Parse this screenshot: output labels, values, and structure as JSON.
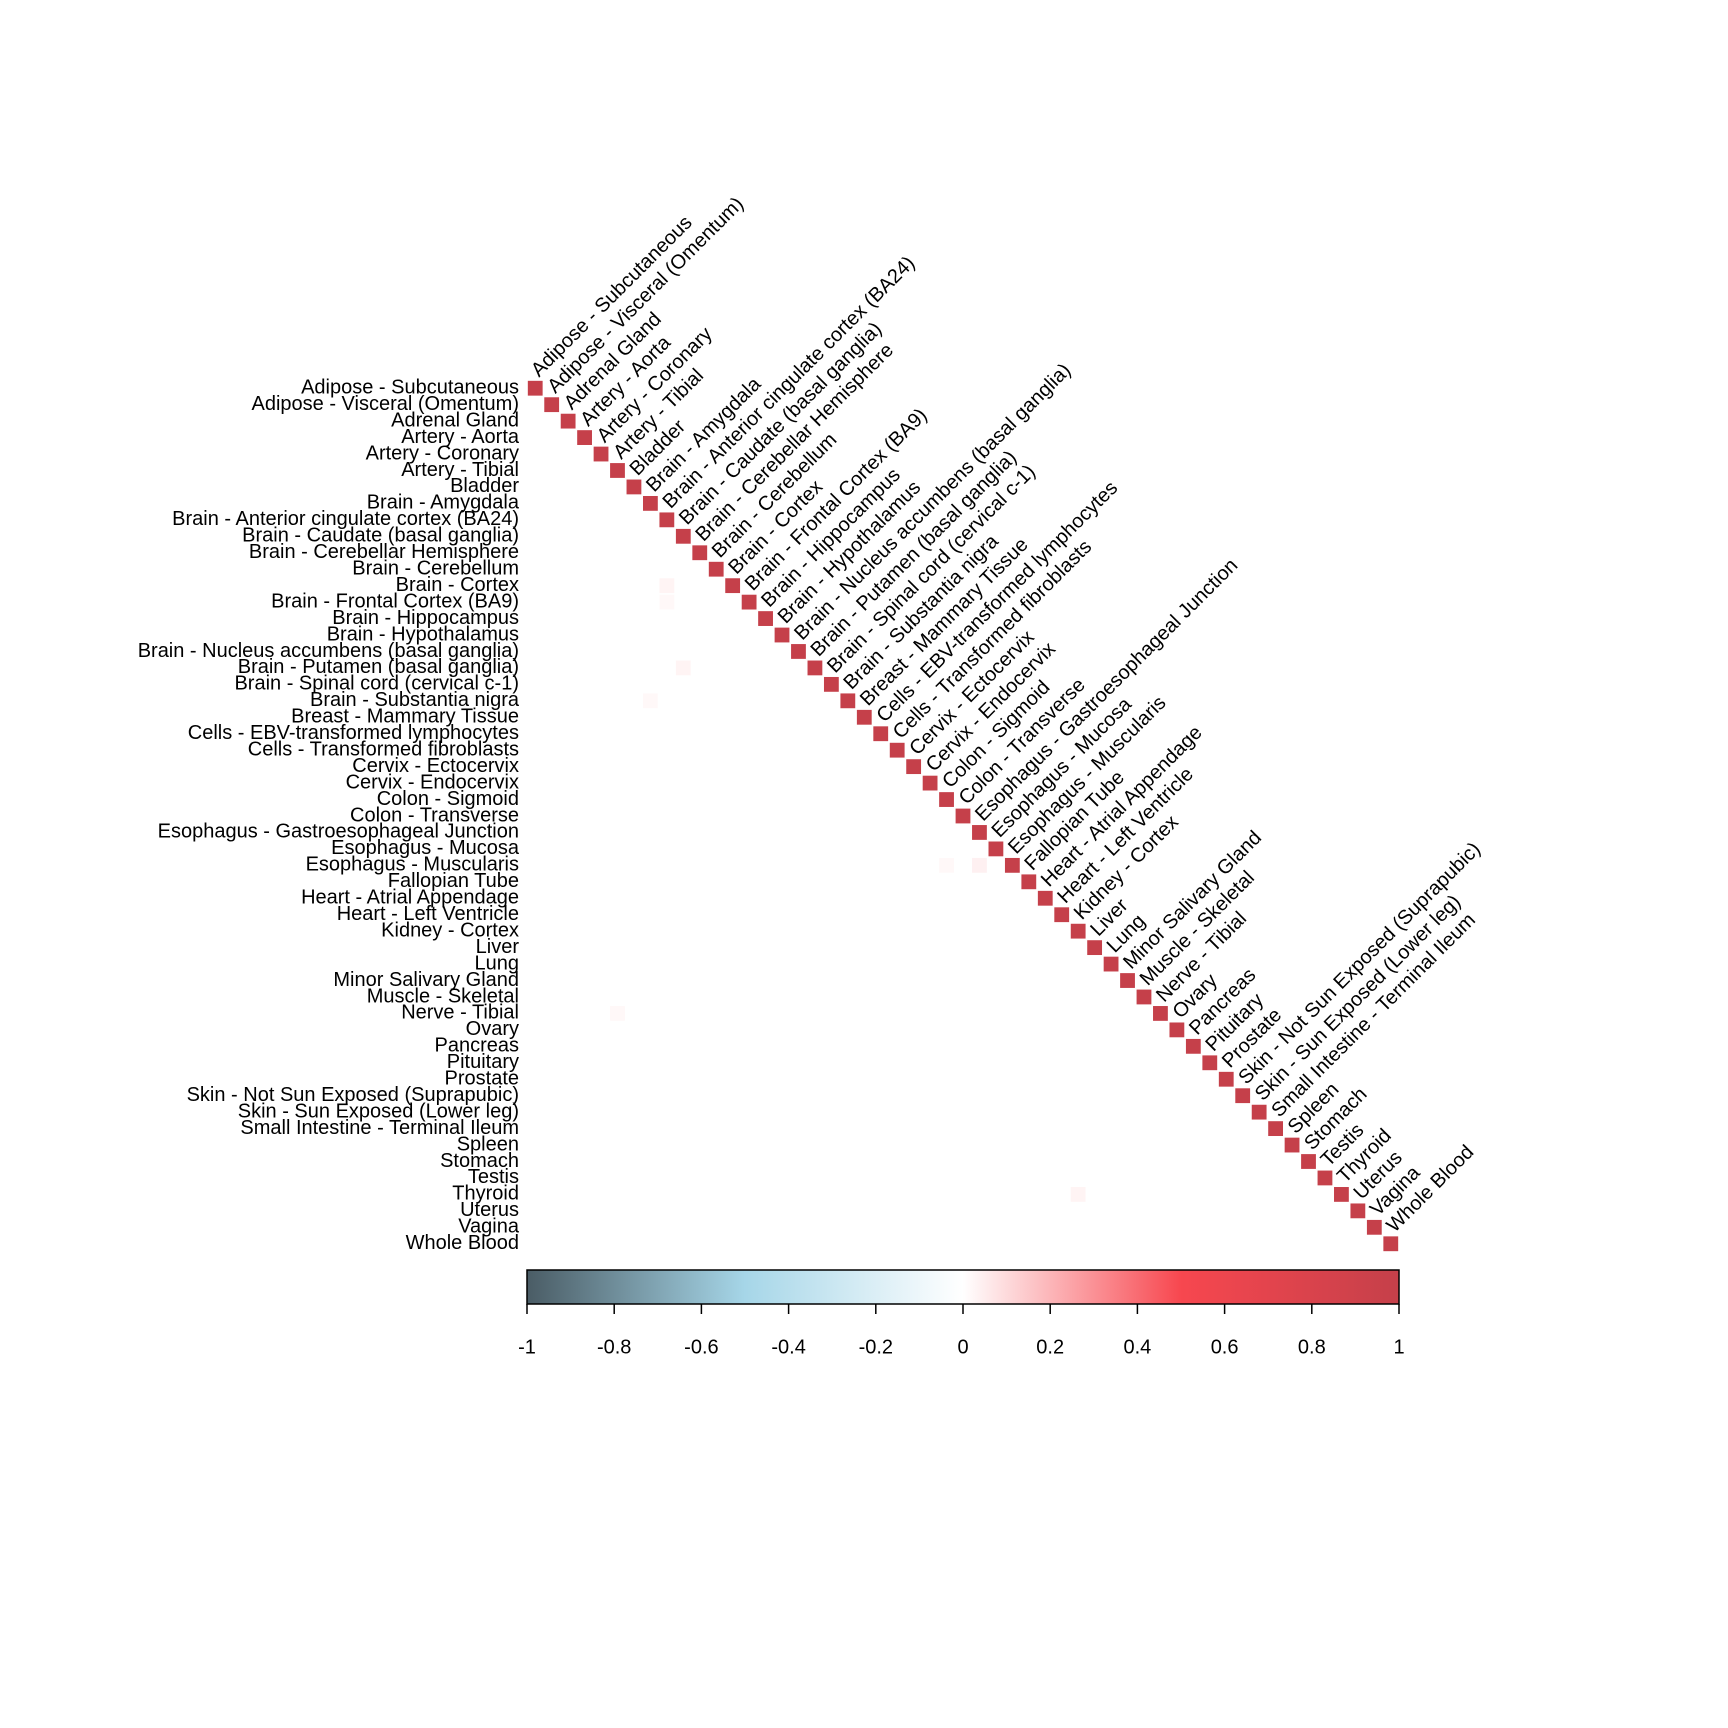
{
  "chart_data": {
    "type": "heatmap",
    "labels": [
      "Adipose - Subcutaneous",
      "Adipose - Visceral (Omentum)",
      "Adrenal Gland",
      "Artery - Aorta",
      "Artery - Coronary",
      "Artery - Tibial",
      "Bladder",
      "Brain - Amygdala",
      "Brain - Anterior cingulate cortex (BA24)",
      "Brain - Caudate (basal ganglia)",
      "Brain - Cerebellar Hemisphere",
      "Brain - Cerebellum",
      "Brain - Cortex",
      "Brain - Frontal Cortex (BA9)",
      "Brain - Hippocampus",
      "Brain - Hypothalamus",
      "Brain - Nucleus accumbens (basal ganglia)",
      "Brain - Putamen (basal ganglia)",
      "Brain - Spinal cord (cervical c-1)",
      "Brain - Substantia nigra",
      "Breast - Mammary Tissue",
      "Cells - EBV-transformed lymphocytes",
      "Cells - Transformed fibroblasts",
      "Cervix - Ectocervix",
      "Cervix - Endocervix",
      "Colon - Sigmoid",
      "Colon - Transverse",
      "Esophagus - Gastroesophageal Junction",
      "Esophagus - Mucosa",
      "Esophagus - Muscularis",
      "Fallopian Tube",
      "Heart - Atrial Appendage",
      "Heart - Left Ventricle",
      "Kidney - Cortex",
      "Liver",
      "Lung",
      "Minor Salivary Gland",
      "Muscle - Skeletal",
      "Nerve - Tibial",
      "Ovary",
      "Pancreas",
      "Pituitary",
      "Prostate",
      "Skin - Not Sun Exposed (Suprapubic)",
      "Skin - Sun Exposed (Lower leg)",
      "Small Intestine - Terminal Ileum",
      "Spleen",
      "Stomach",
      "Testis",
      "Thyroid",
      "Uterus",
      "Vagina",
      "Whole Blood"
    ],
    "matrix": [
      [
        1
      ],
      [
        0,
        1
      ],
      [
        0,
        0,
        1
      ],
      [
        0,
        0,
        0,
        1
      ],
      [
        0,
        0,
        0,
        0,
        1
      ],
      [
        0,
        0,
        0,
        0,
        0,
        1
      ],
      [
        0,
        0,
        0,
        0,
        0,
        0,
        1
      ],
      [
        0,
        0,
        0,
        0,
        0,
        0,
        0,
        1
      ],
      [
        0,
        0,
        0,
        0,
        0,
        0,
        0,
        0,
        1
      ],
      [
        0,
        0,
        0,
        0,
        0,
        0,
        0,
        0,
        0,
        1
      ],
      [
        0,
        0,
        0,
        0,
        0,
        0,
        0,
        0,
        0,
        0,
        1
      ],
      [
        0,
        0,
        0,
        0,
        0,
        0,
        0,
        0,
        0,
        0,
        0,
        1
      ],
      [
        0,
        0,
        0,
        0,
        0,
        0,
        0,
        0,
        0.03,
        0,
        0,
        0,
        1
      ],
      [
        0,
        0,
        0,
        0,
        0,
        0,
        0,
        0,
        0.02,
        0,
        0,
        0,
        0,
        1
      ],
      [
        0,
        0,
        0,
        0,
        0,
        0,
        0,
        0,
        0,
        0,
        0,
        0,
        0,
        0,
        1
      ],
      [
        0,
        0,
        0,
        0,
        0,
        0,
        0,
        0,
        0,
        0,
        0,
        0,
        0,
        0,
        0,
        1
      ],
      [
        0,
        0,
        0,
        0,
        0,
        0,
        0,
        0,
        0,
        0,
        0,
        0,
        0,
        0,
        0,
        0,
        1
      ],
      [
        0,
        0,
        0,
        0,
        0,
        0,
        0,
        0,
        0,
        0.03,
        0,
        0,
        0,
        0,
        0,
        0,
        0,
        1
      ],
      [
        0,
        0,
        0,
        0,
        0,
        0,
        0,
        0,
        0,
        0,
        0,
        0,
        0,
        0,
        0,
        0,
        0,
        0,
        1
      ],
      [
        0,
        0,
        0,
        0,
        0,
        0,
        0,
        0.02,
        0,
        0,
        0,
        0,
        0,
        0,
        0,
        0,
        0,
        0,
        0,
        1
      ],
      [
        0,
        0,
        0,
        0,
        0,
        0,
        0,
        0,
        0,
        0,
        0,
        0,
        0,
        0,
        0,
        0,
        0,
        0,
        0,
        0,
        1
      ],
      [
        0,
        0,
        0,
        0,
        0,
        0,
        0,
        0,
        0,
        0,
        0,
        0,
        0,
        0,
        0,
        0,
        0,
        0,
        0,
        0,
        0,
        1
      ],
      [
        0,
        0,
        0,
        0,
        0,
        0,
        0,
        0,
        0,
        0,
        0,
        0,
        0,
        0,
        0,
        0,
        0,
        0,
        0,
        0,
        0,
        0,
        1
      ],
      [
        0,
        0,
        0,
        0,
        0,
        0,
        0,
        0,
        0,
        0,
        0,
        0,
        0,
        0,
        0,
        0,
        0,
        0,
        0,
        0,
        0,
        0,
        0,
        1
      ],
      [
        0,
        0,
        0,
        0,
        0,
        0,
        0,
        0,
        0,
        0,
        0,
        0,
        0,
        0,
        0,
        0,
        0,
        0,
        0,
        0,
        0,
        0,
        0,
        0,
        1
      ],
      [
        0,
        0,
        0,
        0,
        0,
        0,
        0,
        0,
        0,
        0,
        0,
        0,
        0,
        0,
        0,
        0,
        0,
        0,
        0,
        0,
        0,
        0,
        0,
        0,
        0,
        1
      ],
      [
        0,
        0,
        0,
        0,
        0,
        0,
        0,
        0,
        0,
        0,
        0,
        0,
        0,
        0,
        0,
        0,
        0,
        0,
        0,
        0,
        0,
        0,
        0,
        0,
        0,
        0,
        1
      ],
      [
        0,
        0,
        0,
        0,
        0,
        0,
        0,
        0,
        0,
        0,
        0,
        0,
        0,
        0,
        0,
        0,
        0,
        0,
        0,
        0,
        0,
        0,
        0,
        0,
        0,
        0,
        0,
        1
      ],
      [
        0,
        0,
        0,
        0,
        0,
        0,
        0,
        0,
        0,
        0,
        0,
        0,
        0,
        0,
        0,
        0,
        0,
        0,
        0,
        0,
        0,
        0,
        0,
        0,
        0,
        0,
        0,
        0,
        1
      ],
      [
        0,
        0,
        0,
        0,
        0,
        0,
        0,
        0,
        0,
        0,
        0,
        0,
        0,
        0,
        0,
        0,
        0,
        0,
        0,
        0,
        0,
        0,
        0,
        0,
        0,
        0.02,
        0,
        0.04,
        0,
        1
      ],
      [
        0,
        0,
        0,
        0,
        0,
        0,
        0,
        0,
        0,
        0,
        0,
        0,
        0,
        0,
        0,
        0,
        0,
        0,
        0,
        0,
        0,
        0,
        0,
        0,
        0,
        0,
        0,
        0,
        0,
        0,
        1
      ],
      [
        0,
        0,
        0,
        0,
        0,
        0,
        0,
        0,
        0,
        0,
        0,
        0,
        0,
        0,
        0,
        0,
        0,
        0,
        0,
        0,
        0,
        0,
        0,
        0,
        0,
        0,
        0,
        0,
        0,
        0,
        0,
        1
      ],
      [
        0,
        0,
        0,
        0,
        0,
        0,
        0,
        0,
        0,
        0,
        0,
        0,
        0,
        0,
        0,
        0,
        0,
        0,
        0,
        0,
        0,
        0,
        0,
        0,
        0,
        0,
        0,
        0,
        0,
        0,
        0,
        0,
        1
      ],
      [
        0,
        0,
        0,
        0,
        0,
        0,
        0,
        0,
        0,
        0,
        0,
        0,
        0,
        0,
        0,
        0,
        0,
        0,
        0,
        0,
        0,
        0,
        0,
        0,
        0,
        0,
        0,
        0,
        0,
        0,
        0,
        0,
        0,
        1
      ],
      [
        0,
        0,
        0,
        0,
        0,
        0,
        0,
        0,
        0,
        0,
        0,
        0,
        0,
        0,
        0,
        0,
        0,
        0,
        0,
        0,
        0,
        0,
        0,
        0,
        0,
        0,
        0,
        0,
        0,
        0,
        0,
        0,
        0,
        0,
        1
      ],
      [
        0,
        0,
        0,
        0,
        0,
        0,
        0,
        0,
        0,
        0,
        0,
        0,
        0,
        0,
        0,
        0,
        0,
        0,
        0,
        0,
        0,
        0,
        0,
        0,
        0,
        0,
        0,
        0,
        0,
        0,
        0,
        0,
        0,
        0,
        0,
        1
      ],
      [
        0,
        0,
        0,
        0,
        0,
        0,
        0,
        0,
        0,
        0,
        0,
        0,
        0,
        0,
        0,
        0,
        0,
        0,
        0,
        0,
        0,
        0,
        0,
        0,
        0,
        0,
        0,
        0,
        0,
        0,
        0,
        0,
        0,
        0,
        0,
        0,
        1
      ],
      [
        0,
        0,
        0,
        0,
        0,
        0,
        0,
        0,
        0,
        0,
        0,
        0,
        0,
        0,
        0,
        0,
        0,
        0,
        0,
        0,
        0,
        0,
        0,
        0,
        0,
        0,
        0,
        0,
        0,
        0,
        0,
        0,
        0,
        0,
        0,
        0,
        0,
        1
      ],
      [
        0,
        0,
        0,
        0,
        0,
        0.02,
        0,
        0,
        0,
        0,
        0,
        0,
        0,
        0,
        0,
        0,
        0,
        0,
        0,
        0,
        0,
        0,
        0,
        0,
        0,
        0,
        0,
        0,
        0,
        0,
        0,
        0,
        0,
        0,
        0,
        0,
        0,
        0,
        1
      ],
      [
        0,
        0,
        0,
        0,
        0,
        0,
        0,
        0,
        0,
        0,
        0,
        0,
        0,
        0,
        0,
        0,
        0,
        0,
        0,
        0,
        0,
        0,
        0,
        0,
        0,
        0,
        0,
        0,
        0,
        0,
        0,
        0,
        0,
        0,
        0,
        0,
        0,
        0,
        0,
        1
      ],
      [
        0,
        0,
        0,
        0,
        0,
        0,
        0,
        0,
        0,
        0,
        0,
        0,
        0,
        0,
        0,
        0,
        0,
        0,
        0,
        0,
        0,
        0,
        0,
        0,
        0,
        0,
        0,
        0,
        0,
        0,
        0,
        0,
        0,
        0,
        0,
        0,
        0,
        0,
        0,
        0,
        1
      ],
      [
        0,
        0,
        0,
        0,
        0,
        0,
        0,
        0,
        0,
        0,
        0,
        0,
        0,
        0,
        0,
        0,
        0,
        0,
        0,
        0,
        0,
        0,
        0,
        0,
        0,
        0,
        0,
        0,
        0,
        0,
        0,
        0,
        0,
        0,
        0,
        0,
        0,
        0,
        0,
        0,
        0,
        1
      ],
      [
        0,
        0,
        0,
        0,
        0,
        0,
        0,
        0,
        0,
        0,
        0,
        0,
        0,
        0,
        0,
        0,
        0,
        0,
        0,
        0,
        0,
        0,
        0,
        0,
        0,
        0,
        0,
        0,
        0,
        0,
        0,
        0,
        0,
        0,
        0,
        0,
        0,
        0,
        0,
        0,
        0,
        0,
        1
      ],
      [
        0,
        0,
        0,
        0,
        0,
        0,
        0,
        0,
        0,
        0,
        0,
        0,
        0,
        0,
        0,
        0,
        0,
        0,
        0,
        0,
        0,
        0,
        0,
        0,
        0,
        0,
        0,
        0,
        0,
        0,
        0,
        0,
        0,
        0,
        0,
        0,
        0,
        0,
        0,
        0,
        0,
        0,
        0,
        1
      ],
      [
        0,
        0,
        0,
        0,
        0,
        0,
        0,
        0,
        0,
        0,
        0,
        0,
        0,
        0,
        0,
        0,
        0,
        0,
        0,
        0,
        0,
        0,
        0,
        0,
        0,
        0,
        0,
        0,
        0,
        0,
        0,
        0,
        0,
        0,
        0,
        0,
        0,
        0,
        0,
        0,
        0,
        0,
        0,
        0,
        1
      ],
      [
        0,
        0,
        0,
        0,
        0,
        0,
        0,
        0,
        0,
        0,
        0,
        0,
        0,
        0,
        0,
        0,
        0,
        0,
        0,
        0,
        0,
        0,
        0,
        0,
        0,
        0,
        0,
        0,
        0,
        0,
        0,
        0,
        0,
        0,
        0,
        0,
        0,
        0,
        0,
        0,
        0,
        0,
        0,
        0,
        0,
        1
      ],
      [
        0,
        0,
        0,
        0,
        0,
        0,
        0,
        0,
        0,
        0,
        0,
        0,
        0,
        0,
        0,
        0,
        0,
        0,
        0,
        0,
        0,
        0,
        0,
        0,
        0,
        0,
        0,
        0,
        0,
        0,
        0,
        0,
        0,
        0,
        0,
        0,
        0,
        0,
        0,
        0,
        0,
        0,
        0,
        0,
        0,
        0,
        1
      ],
      [
        0,
        0,
        0,
        0,
        0,
        0,
        0,
        0,
        0,
        0,
        0,
        0,
        0,
        0,
        0,
        0,
        0,
        0,
        0,
        0,
        0,
        0,
        0,
        0,
        0,
        0,
        0,
        0,
        0,
        0,
        0,
        0,
        0,
        0,
        0,
        0,
        0,
        0,
        0,
        0,
        0,
        0,
        0,
        0,
        0,
        0,
        0,
        1
      ],
      [
        0,
        0,
        0,
        0,
        0,
        0,
        0,
        0,
        0,
        0,
        0,
        0,
        0,
        0,
        0,
        0,
        0,
        0,
        0,
        0,
        0,
        0,
        0,
        0,
        0,
        0,
        0,
        0,
        0,
        0,
        0,
        0,
        0,
        0,
        0,
        0,
        0,
        0,
        0,
        0,
        0,
        0,
        0,
        0,
        0,
        0,
        0,
        0,
        1
      ],
      [
        0,
        0,
        0,
        0,
        0,
        0,
        0,
        0,
        0,
        0,
        0,
        0,
        0,
        0,
        0,
        0,
        0,
        0,
        0,
        0,
        0,
        0,
        0,
        0,
        0,
        0,
        0,
        0,
        0,
        0,
        0,
        0,
        0,
        0.03,
        0,
        0,
        0,
        0,
        0,
        0,
        0,
        0,
        0,
        0,
        0,
        0,
        0,
        0,
        0,
        1
      ],
      [
        0,
        0,
        0,
        0,
        0,
        0,
        0,
        0,
        0,
        0,
        0,
        0,
        0,
        0,
        0,
        0,
        0,
        0,
        0,
        0,
        0,
        0,
        0,
        0,
        0,
        0,
        0,
        0,
        0,
        0,
        0,
        0,
        0,
        0,
        0,
        0,
        0,
        0,
        0,
        0,
        0,
        0,
        0,
        0,
        0,
        0,
        0,
        0,
        0,
        0,
        1
      ],
      [
        0,
        0,
        0,
        0,
        0,
        0,
        0,
        0,
        0,
        0,
        0,
        0,
        0,
        0,
        0,
        0,
        0,
        0,
        0,
        0,
        0,
        0,
        0,
        0,
        0,
        0,
        0,
        0,
        0,
        0,
        0,
        0,
        0,
        0,
        0,
        0,
        0,
        0,
        0,
        0,
        0,
        0,
        0,
        0,
        0,
        0,
        0,
        0,
        0,
        0,
        0,
        1
      ],
      [
        0,
        0,
        0,
        0,
        0,
        0,
        0,
        0,
        0,
        0,
        0,
        0,
        0,
        0,
        0,
        0,
        0,
        0,
        0,
        0,
        0,
        0,
        0,
        0,
        0,
        0,
        0,
        0,
        0,
        0,
        0,
        0,
        0,
        0,
        0,
        0,
        0,
        0,
        0,
        0,
        0,
        0,
        0,
        0,
        0,
        0,
        0,
        0,
        0,
        0,
        0,
        0,
        1
      ]
    ],
    "zlim": [
      -1,
      1
    ],
    "zticks": [
      -1,
      -0.8,
      -0.6,
      -0.4,
      -0.2,
      0,
      0.2,
      0.4,
      0.6,
      0.8,
      1
    ],
    "colorscale": [
      "#4a5c65",
      "#a6d6e8",
      "#ffffff",
      "#f7474f",
      "#c5404a"
    ]
  }
}
